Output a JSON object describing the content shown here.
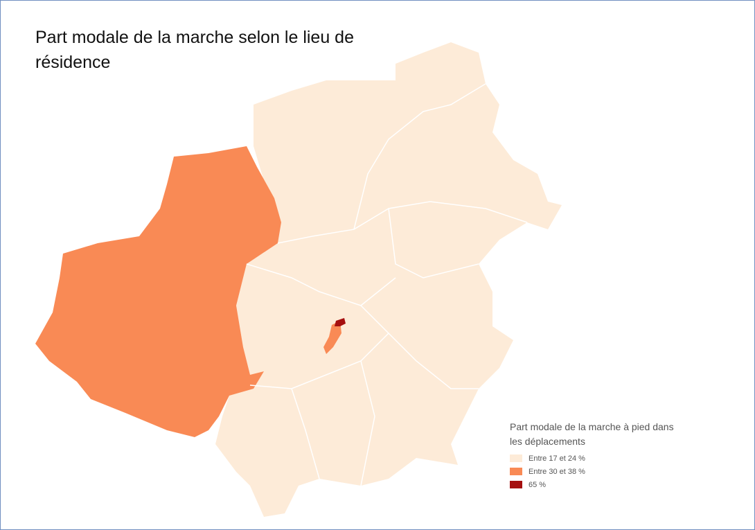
{
  "title": "Part modale de la marche selon le lieu de résidence",
  "legend": {
    "title": "Part modale de la marche à pied dans les déplacements",
    "items": [
      {
        "label": "Entre 17 et 24 %",
        "color": "#fdebd8"
      },
      {
        "label": "Entre 30 et 38 %",
        "color": "#f98a55"
      },
      {
        "label": "65 %",
        "color": "#a50f0f"
      }
    ]
  }
}
